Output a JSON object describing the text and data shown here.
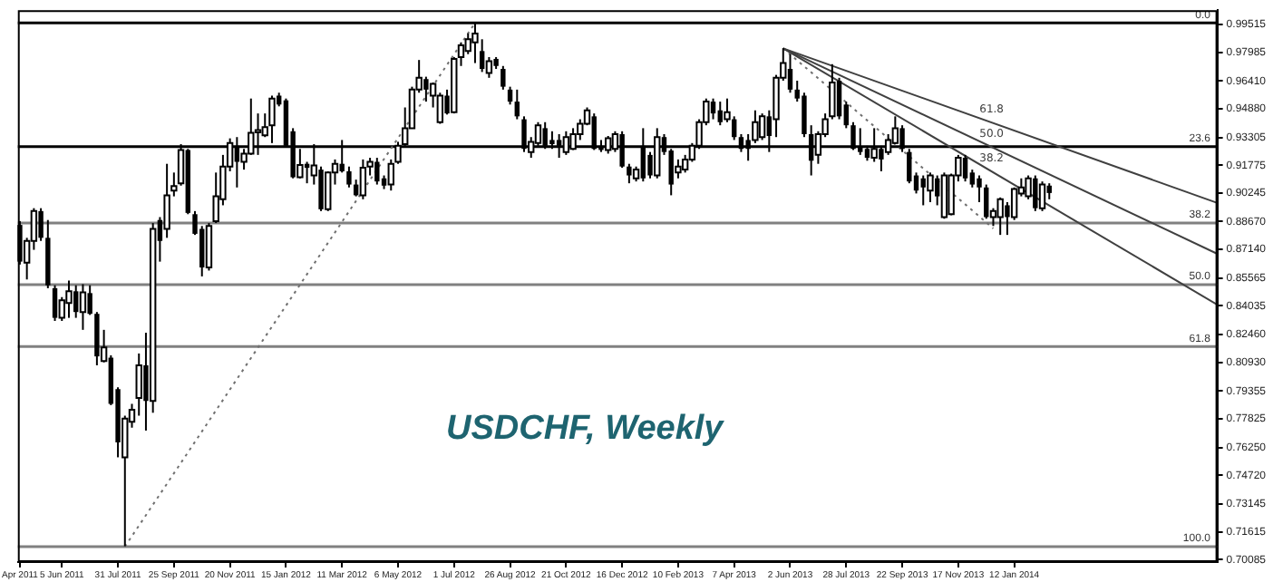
{
  "chart_data": {
    "type": "candlestick",
    "title": "USDCHF, Weekly",
    "colors": [
      "#000000",
      "#ffffff",
      "#ffffff",
      "#000000",
      "#000000",
      "#000000",
      "#ffffff",
      "#ffffff",
      "#000000",
      "#ffffff",
      "#000000",
      "#000000",
      "#ffffff",
      "#000000",
      "#000000",
      "#ffffff",
      "#ffffff",
      "#ffffff",
      "#000000",
      "#ffffff",
      "#000000",
      "#ffffff",
      "#ffffff",
      "#ffffff",
      "#000000",
      "#000000",
      "#000000",
      "#ffffff",
      "#ffffff",
      "#ffffff",
      "#ffffff",
      "#000000",
      "#ffffff",
      "#ffffff",
      "#ffffff",
      "#ffffff",
      "#ffffff",
      "#000000",
      "#000000",
      "#000000",
      "#ffffff",
      "#000000",
      "#ffffff",
      "#000000",
      "#ffffff",
      "#ffffff",
      "#000000",
      "#000000",
      "#000000",
      "#ffffff",
      "#ffffff",
      "#000000",
      "#000000",
      "#ffffff",
      "#ffffff",
      "#ffffff",
      "#ffffff",
      "#ffffff",
      "#000000",
      "#ffffff",
      "#ffffff",
      "#000000",
      "#ffffff",
      "#ffffff",
      "#ffffff",
      "#ffffff",
      "#000000",
      "#ffffff",
      "#000000",
      "#000000",
      "#000000",
      "#000000",
      "#000000",
      "#ffffff",
      "#ffffff",
      "#000000",
      "#000000",
      "#000000",
      "#ffffff",
      "#ffffff",
      "#ffffff",
      "#ffffff",
      "#000000",
      "#000000",
      "#ffffff",
      "#ffffff",
      "#000000",
      "#000000",
      "#ffffff",
      "#000000",
      "#000000",
      "#ffffff",
      "#000000",
      "#000000",
      "#ffffff",
      "#ffffff",
      "#ffffff",
      "#ffffff",
      "#ffffff",
      "#000000",
      "#000000",
      "#ffffff",
      "#000000",
      "#000000",
      "#000000",
      "#ffffff",
      "#ffffff",
      "#000000",
      "#ffffff",
      "#ffffff",
      "#000000",
      "#000000",
      "#000000",
      "#000000",
      "#ffffff",
      "#ffffff",
      "#ffffff",
      "#000000",
      "#000000",
      "#000000",
      "#000000",
      "#000000",
      "#ffffff",
      "#000000",
      "#ffffff",
      "#ffffff",
      "#000000",
      "#000000",
      "#000000",
      "#000000",
      "#ffffff",
      "#000000",
      "#ffffff",
      "#ffffff",
      "#ffffff",
      "#000000",
      "#000000",
      "#000000",
      "#000000",
      "#ffffff",
      "#ffffff",
      "#000000",
      "#ffffff",
      "#ffffff",
      "#ffffff",
      "#000000",
      "#ffffff",
      "#000000"
    ],
    "marker": "none",
    "legend": false,
    "xlim": [
      "2011-04-22",
      "2014-08-03"
    ],
    "xticks": [
      {
        "value": "2011-04-24",
        "label": "Apr 2011"
      },
      {
        "value": "2011-06-05",
        "label": "5 Jun 2011"
      },
      {
        "value": "2011-07-31",
        "label": "31 Jul 2011"
      },
      {
        "value": "2011-09-25",
        "label": "25 Sep 2011"
      },
      {
        "value": "2011-11-20",
        "label": "20 Nov 2011"
      },
      {
        "value": "2012-01-15",
        "label": "15 Jan 2012"
      },
      {
        "value": "2012-03-11",
        "label": "11 Mar 2012"
      },
      {
        "value": "2012-05-06",
        "label": "6 May 2012"
      },
      {
        "value": "2012-07-01",
        "label": "1 Jul 2012"
      },
      {
        "value": "2012-08-26",
        "label": "26 Aug 2012"
      },
      {
        "value": "2012-10-21",
        "label": "21 Oct 2012"
      },
      {
        "value": "2012-12-16",
        "label": "16 Dec 2012"
      },
      {
        "value": "2013-02-10",
        "label": "10 Feb 2013"
      },
      {
        "value": "2013-04-07",
        "label": "7 Apr 2013"
      },
      {
        "value": "2013-06-02",
        "label": "2 Jun 2013"
      },
      {
        "value": "2013-07-28",
        "label": "28 Jul 2013"
      },
      {
        "value": "2013-09-22",
        "label": "22 Sep 2013"
      },
      {
        "value": "2013-11-17",
        "label": "17 Nov 2013"
      },
      {
        "value": "2014-01-12",
        "label": "12 Jan 2014"
      }
    ],
    "ylim": [
      0.6995,
      1.003
    ],
    "yticks": [
      0.99515,
      0.97985,
      {
        "value": 0.9641,
        "label": "0.96410"
      },
      {
        "value": 0.9488,
        "label": "0.94880"
      },
      0.93305,
      0.91775,
      0.90245,
      {
        "value": 0.8867,
        "label": "0.88670"
      },
      {
        "value": 0.8714,
        "label": "0.87140"
      },
      0.85565,
      0.84035,
      {
        "value": 0.8246,
        "label": "0.82460"
      },
      {
        "value": 0.8093,
        "label": "0.80930"
      },
      0.79355,
      0.77825,
      {
        "value": 0.7625,
        "label": "0.76250"
      },
      {
        "value": 0.7472,
        "label": "0.74720"
      },
      0.73145,
      0.71615,
      0.70085
    ],
    "x": [
      "2011-04-24",
      "2011-05-01",
      "2011-05-08",
      "2011-05-15",
      "2011-05-22",
      "2011-05-29",
      "2011-06-05",
      "2011-06-12",
      "2011-06-19",
      "2011-06-26",
      "2011-07-03",
      "2011-07-10",
      "2011-07-17",
      "2011-07-24",
      "2011-07-31",
      "2011-08-07",
      "2011-08-14",
      "2011-08-21",
      "2011-08-28",
      "2011-09-04",
      "2011-09-11",
      "2011-09-18",
      "2011-09-25",
      "2011-10-02",
      "2011-10-09",
      "2011-10-16",
      "2011-10-23",
      "2011-10-30",
      "2011-11-06",
      "2011-11-13",
      "2011-11-20",
      "2011-11-27",
      "2011-12-04",
      "2011-12-11",
      "2011-12-18",
      "2011-12-25",
      "2012-01-01",
      "2012-01-08",
      "2012-01-15",
      "2012-01-22",
      "2012-01-29",
      "2012-02-05",
      "2012-02-12",
      "2012-02-19",
      "2012-02-26",
      "2012-03-04",
      "2012-03-11",
      "2012-03-18",
      "2012-03-25",
      "2012-04-01",
      "2012-04-08",
      "2012-04-15",
      "2012-04-22",
      "2012-04-29",
      "2012-05-06",
      "2012-05-13",
      "2012-05-20",
      "2012-05-27",
      "2012-06-03",
      "2012-06-10",
      "2012-06-17",
      "2012-06-24",
      "2012-07-01",
      "2012-07-08",
      "2012-07-15",
      "2012-07-22",
      "2012-07-29",
      "2012-08-05",
      "2012-08-12",
      "2012-08-19",
      "2012-08-26",
      "2012-09-02",
      "2012-09-09",
      "2012-09-16",
      "2012-09-23",
      "2012-09-30",
      "2012-10-07",
      "2012-10-14",
      "2012-10-21",
      "2012-10-28",
      "2012-11-04",
      "2012-11-11",
      "2012-11-18",
      "2012-11-25",
      "2012-12-02",
      "2012-12-09",
      "2012-12-16",
      "2012-12-23",
      "2012-12-30",
      "2013-01-06",
      "2013-01-13",
      "2013-01-20",
      "2013-01-27",
      "2013-02-03",
      "2013-02-10",
      "2013-02-17",
      "2013-02-24",
      "2013-03-03",
      "2013-03-10",
      "2013-03-17",
      "2013-03-24",
      "2013-03-31",
      "2013-04-07",
      "2013-04-14",
      "2013-04-21",
      "2013-04-28",
      "2013-05-05",
      "2013-05-12",
      "2013-05-19",
      "2013-05-26",
      "2013-06-02",
      "2013-06-09",
      "2013-06-16",
      "2013-06-23",
      "2013-06-30",
      "2013-07-07",
      "2013-07-14",
      "2013-07-21",
      "2013-07-28",
      "2013-08-04",
      "2013-08-11",
      "2013-08-18",
      "2013-08-25",
      "2013-09-01",
      "2013-09-08",
      "2013-09-15",
      "2013-09-22",
      "2013-09-29",
      "2013-10-06",
      "2013-10-13",
      "2013-10-20",
      "2013-10-27",
      "2013-11-03",
      "2013-11-10",
      "2013-11-17",
      "2013-11-24",
      "2013-12-01",
      "2013-12-08",
      "2013-12-15",
      "2013-12-22",
      "2013-12-29",
      "2014-01-05",
      "2014-01-12",
      "2014-01-19",
      "2014-01-26",
      "2014-02-02",
      "2014-02-09",
      "2014-02-16"
    ],
    "ohlc": [
      [
        0.8849,
        0.887,
        0.8631,
        0.8647
      ],
      [
        0.8641,
        0.8778,
        0.8549,
        0.8761
      ],
      [
        0.8761,
        0.8941,
        0.8712,
        0.8925
      ],
      [
        0.8925,
        0.8941,
        0.8761,
        0.8778
      ],
      [
        0.8778,
        0.8876,
        0.8501,
        0.8517
      ],
      [
        0.8501,
        0.8517,
        0.8321,
        0.8338
      ],
      [
        0.8338,
        0.8452,
        0.8321,
        0.8435
      ],
      [
        0.8419,
        0.8543,
        0.8338,
        0.8484
      ],
      [
        0.8484,
        0.8517,
        0.8338,
        0.837
      ],
      [
        0.837,
        0.8523,
        0.8272,
        0.8478
      ],
      [
        0.8474,
        0.8517,
        0.8354,
        0.836
      ],
      [
        0.836,
        0.837,
        0.8077,
        0.8126
      ],
      [
        0.81,
        0.8272,
        0.8093,
        0.8175
      ],
      [
        0.8119,
        0.8132,
        0.7858,
        0.7865
      ],
      [
        0.7946,
        0.7956,
        0.7571,
        0.7653
      ],
      [
        0.7571,
        0.78,
        0.7082,
        0.7784
      ],
      [
        0.7767,
        0.7865,
        0.7734,
        0.7832
      ],
      [
        0.7897,
        0.8142,
        0.78,
        0.8077
      ],
      [
        0.8077,
        0.8256,
        0.7718,
        0.7881
      ],
      [
        0.7881,
        0.8859,
        0.7816,
        0.8827
      ],
      [
        0.8876,
        0.8892,
        0.8647,
        0.8761
      ],
      [
        0.8827,
        0.9185,
        0.8778,
        0.9012
      ],
      [
        0.9038,
        0.9137,
        0.9006,
        0.9062
      ],
      [
        0.9078,
        0.9293,
        0.9065,
        0.9261
      ],
      [
        0.9261,
        0.9267,
        0.8908,
        0.8915
      ],
      [
        0.8908,
        0.8925,
        0.8794,
        0.88
      ],
      [
        0.8827,
        0.8843,
        0.8566,
        0.8615
      ],
      [
        0.8615,
        0.8859,
        0.8598,
        0.8843
      ],
      [
        0.887,
        0.9137,
        0.8859,
        0.9006
      ],
      [
        0.899,
        0.9234,
        0.8957,
        0.917
      ],
      [
        0.917,
        0.9325,
        0.9144,
        0.9299
      ],
      [
        0.9284,
        0.9332,
        0.9055,
        0.9196
      ],
      [
        0.9196,
        0.9267,
        0.9153,
        0.9241
      ],
      [
        0.9241,
        0.9544,
        0.9234,
        0.9355
      ],
      [
        0.9358,
        0.9462,
        0.9234,
        0.9371
      ],
      [
        0.9342,
        0.9462,
        0.9332,
        0.9387
      ],
      [
        0.9397,
        0.956,
        0.9299,
        0.9544
      ],
      [
        0.956,
        0.9576,
        0.9501,
        0.9511
      ],
      [
        0.9534,
        0.9544,
        0.9274,
        0.9284
      ],
      [
        0.9364,
        0.9381,
        0.9105,
        0.9111
      ],
      [
        0.9111,
        0.9267,
        0.9105,
        0.9179
      ],
      [
        0.9185,
        0.9196,
        0.9078,
        0.9163
      ],
      [
        0.9121,
        0.9293,
        0.9071,
        0.9176
      ],
      [
        0.9153,
        0.917,
        0.8925,
        0.8935
      ],
      [
        0.8935,
        0.9144,
        0.8925,
        0.9137
      ],
      [
        0.9137,
        0.9209,
        0.9071,
        0.9185
      ],
      [
        0.9185,
        0.9316,
        0.9137,
        0.9144
      ],
      [
        0.9144,
        0.917,
        0.9055,
        0.9071
      ],
      [
        0.9071,
        0.9098,
        0.9006,
        0.9012
      ],
      [
        0.9012,
        0.9209,
        0.899,
        0.9163
      ],
      [
        0.917,
        0.9218,
        0.9121,
        0.9196
      ],
      [
        0.9196,
        0.9218,
        0.9071,
        0.9088
      ],
      [
        0.9105,
        0.9121,
        0.9046,
        0.9065
      ],
      [
        0.9071,
        0.9209,
        0.9038,
        0.9185
      ],
      [
        0.9196,
        0.9306,
        0.9185,
        0.9284
      ],
      [
        0.9293,
        0.9495,
        0.9284,
        0.9381
      ],
      [
        0.9381,
        0.9609,
        0.9381,
        0.9593
      ],
      [
        0.9593,
        0.9756,
        0.9576,
        0.9658
      ],
      [
        0.9651,
        0.9664,
        0.9527,
        0.9593
      ],
      [
        0.956,
        0.9632,
        0.9495,
        0.9625
      ],
      [
        0.9414,
        0.9576,
        0.9405,
        0.956
      ],
      [
        0.956,
        0.9593,
        0.9456,
        0.9462
      ],
      [
        0.9469,
        0.9772,
        0.9462,
        0.9762
      ],
      [
        0.9772,
        0.9853,
        0.9723,
        0.9837
      ],
      [
        0.9805,
        0.9902,
        0.9788,
        0.987
      ],
      [
        0.9853,
        0.996,
        0.9739,
        0.9902
      ],
      [
        0.9805,
        0.987,
        0.969,
        0.9707
      ],
      [
        0.9684,
        0.9772,
        0.9658,
        0.9749
      ],
      [
        0.9762,
        0.9772,
        0.9707,
        0.9723
      ],
      [
        0.9707,
        0.9723,
        0.9593,
        0.9609
      ],
      [
        0.9593,
        0.9609,
        0.9511,
        0.9527
      ],
      [
        0.9527,
        0.9593,
        0.943,
        0.9446
      ],
      [
        0.943,
        0.9446,
        0.925,
        0.9267
      ],
      [
        0.925,
        0.9332,
        0.9218,
        0.9306
      ],
      [
        0.9299,
        0.9414,
        0.9284,
        0.9397
      ],
      [
        0.9381,
        0.9414,
        0.9267,
        0.9284
      ],
      [
        0.9316,
        0.9364,
        0.9267,
        0.9293
      ],
      [
        0.9316,
        0.9348,
        0.9218,
        0.9284
      ],
      [
        0.925,
        0.9364,
        0.9234,
        0.9332
      ],
      [
        0.9267,
        0.9381,
        0.9261,
        0.9348
      ],
      [
        0.9348,
        0.943,
        0.9316,
        0.9405
      ],
      [
        0.9405,
        0.9495,
        0.9397,
        0.9479
      ],
      [
        0.9446,
        0.9462,
        0.9261,
        0.9267
      ],
      [
        0.9284,
        0.9316,
        0.925,
        0.9261
      ],
      [
        0.9261,
        0.9338,
        0.9241,
        0.9325
      ],
      [
        0.9267,
        0.9364,
        0.925,
        0.9348
      ],
      [
        0.9348,
        0.9364,
        0.9163,
        0.917
      ],
      [
        0.917,
        0.9185,
        0.9078,
        0.9121
      ],
      [
        0.9105,
        0.917,
        0.9088,
        0.9153
      ],
      [
        0.9284,
        0.9381,
        0.9088,
        0.9105
      ],
      [
        0.9234,
        0.925,
        0.9105,
        0.9121
      ],
      [
        0.9121,
        0.9381,
        0.9105,
        0.9332
      ],
      [
        0.9332,
        0.9348,
        0.9234,
        0.925
      ],
      [
        0.9258,
        0.9267,
        0.9012,
        0.9071
      ],
      [
        0.9137,
        0.9209,
        0.9105,
        0.917
      ],
      [
        0.9153,
        0.9234,
        0.9137,
        0.9209
      ],
      [
        0.9209,
        0.9299,
        0.9196,
        0.9284
      ],
      [
        0.9284,
        0.943,
        0.9267,
        0.9414
      ],
      [
        0.9414,
        0.9544,
        0.9397,
        0.9527
      ],
      [
        0.9527,
        0.9544,
        0.943,
        0.9462
      ],
      [
        0.9479,
        0.9527,
        0.9397,
        0.9414
      ],
      [
        0.943,
        0.9544,
        0.9414,
        0.9469
      ],
      [
        0.943,
        0.9446,
        0.9316,
        0.9332
      ],
      [
        0.9332,
        0.9348,
        0.925,
        0.9267
      ],
      [
        0.9316,
        0.9348,
        0.9202,
        0.9267
      ],
      [
        0.9316,
        0.9479,
        0.9299,
        0.9414
      ],
      [
        0.9332,
        0.9462,
        0.9316,
        0.9446
      ],
      [
        0.9446,
        0.9479,
        0.925,
        0.9338
      ],
      [
        0.943,
        0.9674,
        0.9332,
        0.9658
      ],
      [
        0.9658,
        0.9821,
        0.9642,
        0.9739
      ],
      [
        0.9707,
        0.9788,
        0.9576,
        0.9593
      ],
      [
        0.9593,
        0.9642,
        0.9527,
        0.9544
      ],
      [
        0.956,
        0.9576,
        0.9332,
        0.9348
      ],
      [
        0.9348,
        0.9397,
        0.9121,
        0.9202
      ],
      [
        0.9234,
        0.9364,
        0.9185,
        0.9348
      ],
      [
        0.9348,
        0.9462,
        0.9332,
        0.943
      ],
      [
        0.9446,
        0.9733,
        0.943,
        0.9632
      ],
      [
        0.9642,
        0.9658,
        0.943,
        0.9446
      ],
      [
        0.9511,
        0.9527,
        0.9381,
        0.9397
      ],
      [
        0.9397,
        0.9414,
        0.9261,
        0.9267
      ],
      [
        0.9274,
        0.9381,
        0.9234,
        0.925
      ],
      [
        0.9267,
        0.9284,
        0.9202,
        0.9218
      ],
      [
        0.9218,
        0.9381,
        0.9196,
        0.9267
      ],
      [
        0.9267,
        0.9284,
        0.9144,
        0.9209
      ],
      [
        0.925,
        0.9348,
        0.9234,
        0.9316
      ],
      [
        0.9299,
        0.9446,
        0.9293,
        0.9381
      ],
      [
        0.9381,
        0.9397,
        0.925,
        0.9267
      ],
      [
        0.925,
        0.9267,
        0.9078,
        0.9088
      ],
      [
        0.9121,
        0.9137,
        0.9022,
        0.9038
      ],
      [
        0.9105,
        0.9121,
        0.8957,
        0.9055
      ],
      [
        0.9038,
        0.9137,
        0.8974,
        0.9121
      ],
      [
        0.9105,
        0.9121,
        0.8957,
        0.9006
      ],
      [
        0.8892,
        0.9137,
        0.8883,
        0.9121
      ],
      [
        0.8908,
        0.9131,
        0.8902,
        0.9121
      ],
      [
        0.9121,
        0.9234,
        0.9088,
        0.9218
      ],
      [
        0.9218,
        0.9234,
        0.9088,
        0.9105
      ],
      [
        0.9137,
        0.9153,
        0.9055,
        0.9071
      ],
      [
        0.9105,
        0.9121,
        0.8974,
        0.9055
      ],
      [
        0.9055,
        0.9071,
        0.8883,
        0.8892
      ],
      [
        0.8892,
        0.8941,
        0.8843,
        0.8925
      ],
      [
        0.8892,
        0.9,
        0.8794,
        0.899
      ],
      [
        0.8957,
        0.8974,
        0.8794,
        0.8892
      ],
      [
        0.8892,
        0.9055,
        0.8876,
        0.9046
      ],
      [
        0.9022,
        0.9105,
        0.9006,
        0.9055
      ],
      [
        0.9006,
        0.9121,
        0.899,
        0.9105
      ],
      [
        0.9105,
        0.9121,
        0.8925,
        0.8941
      ],
      [
        0.8941,
        0.9088,
        0.8925,
        0.9071
      ],
      [
        0.9065,
        0.9078,
        0.899,
        0.90245
      ]
    ],
    "series": [
      {
        "type": "line",
        "name": "61.8",
        "color": "#404040",
        "line_style": "solid",
        "x": [
          "2013-05-26",
          "2014-08-03"
        ],
        "values": [
          0.982,
          0.897
        ]
      },
      {
        "type": "line",
        "name": "50.0",
        "color": "#404040",
        "line_style": "solid",
        "x": [
          "2013-05-26",
          "2014-08-03"
        ],
        "values": [
          0.982,
          0.869
        ]
      },
      {
        "type": "line",
        "name": "38.2",
        "color": "#404040",
        "line_style": "solid",
        "x": [
          "2013-05-26",
          "2014-08-03"
        ],
        "values": [
          0.982,
          0.841
        ]
      },
      {
        "type": "line",
        "color": "#707070",
        "line_style": "dotted",
        "x": [
          "2013-05-26",
          "2013-12-22"
        ],
        "values": [
          0.982,
          0.883
        ]
      },
      {
        "type": "line",
        "color": "#707070",
        "line_style": "dotted",
        "x": [
          "2011-08-07",
          "2012-07-22"
        ],
        "values": [
          0.708,
          0.996
        ]
      }
    ],
    "ref_lines": [
      {
        "axis": "y",
        "value": 0.996,
        "color": "#000000"
      },
      {
        "axis": "y",
        "value": 0.928,
        "color": "#000000"
      },
      {
        "axis": "y",
        "value": 0.886,
        "color": "#808080"
      },
      {
        "axis": "y",
        "value": 0.852,
        "color": "#808080"
      },
      {
        "axis": "y",
        "value": 0.818,
        "color": "#808080"
      },
      {
        "axis": "y",
        "value": 0.708,
        "color": "#808080"
      }
    ],
    "annotations": [
      {
        "text": "0.0",
        "x": "2014-07-27",
        "y": 0.996
      },
      {
        "text": "23.6",
        "x": "2014-07-27",
        "y": 0.928
      },
      {
        "text": "38.2",
        "x": "2014-07-27",
        "y": 0.886
      },
      {
        "text": "50.0",
        "x": "2014-07-27",
        "y": 0.852
      },
      {
        "text": "61.8",
        "x": "2014-07-27",
        "y": 0.818
      },
      {
        "text": "100.0",
        "x": "2014-07-27",
        "y": 0.708
      }
    ]
  }
}
